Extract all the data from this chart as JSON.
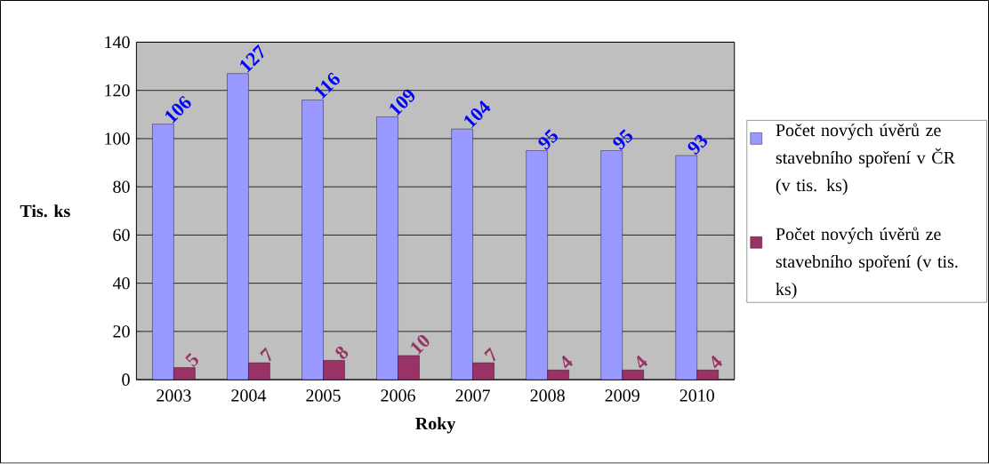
{
  "chart_data": {
    "type": "bar",
    "xlabel": "Roky",
    "ylabel": "Tis. ks",
    "categories": [
      "2003",
      "2004",
      "2005",
      "2006",
      "2007",
      "2008",
      "2009",
      "2010"
    ],
    "series": [
      {
        "name": "Počet nových úvěrů ze stavebního spoření v ČR (v tis. ks)",
        "color": "#9999ff",
        "values": [
          106,
          127,
          116,
          109,
          104,
          95,
          95,
          93
        ]
      },
      {
        "name": "Počet nových úvěrů ze stavebního spoření (v tis. ks)",
        "color": "#993366",
        "values": [
          5,
          7,
          8,
          10,
          7,
          4,
          4,
          4
        ]
      }
    ],
    "ylim": [
      0,
      140
    ],
    "yticks": [
      0,
      20,
      40,
      60,
      80,
      100,
      120,
      140
    ],
    "grid": "y",
    "legend": "right",
    "data_labels": true
  }
}
